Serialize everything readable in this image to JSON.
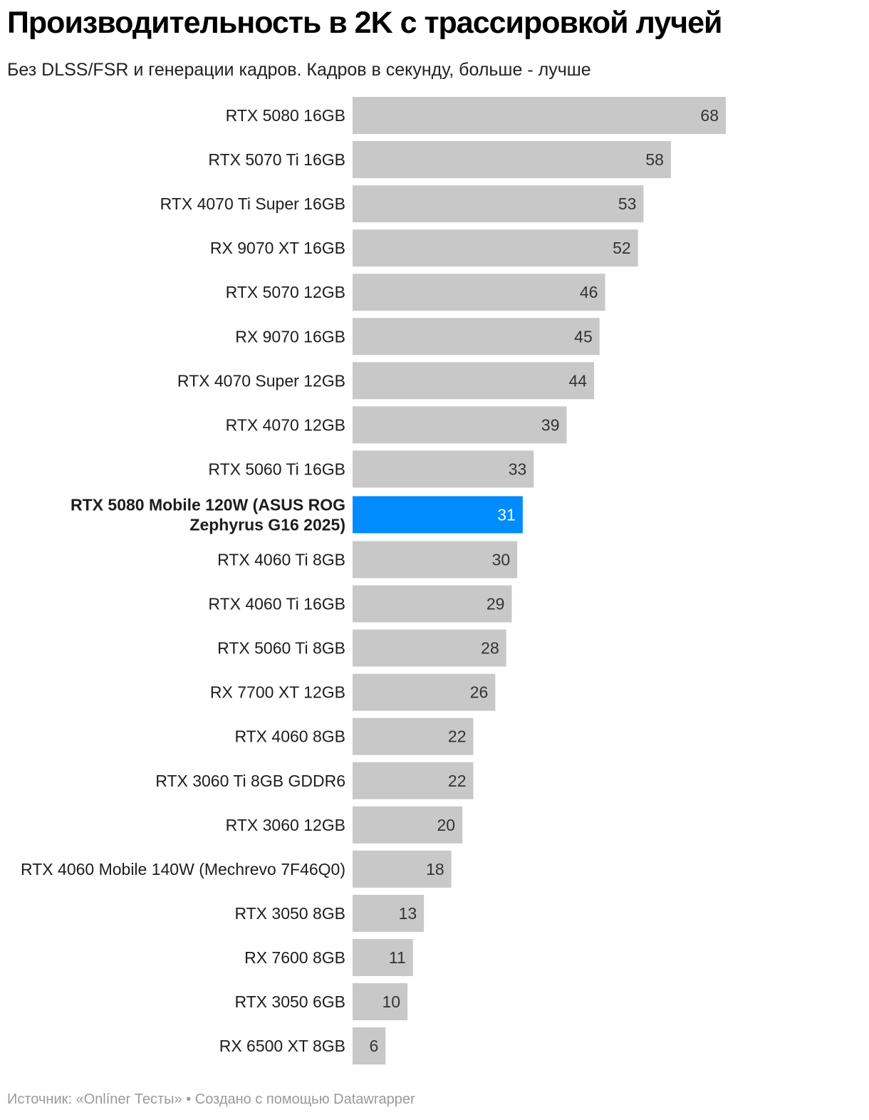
{
  "header": {
    "title": "Производительность в 2K с трассировкой лучей",
    "subtitle": "Без DLSS/FSR и генерации кадров. Кадров в секунду, больше - лучше"
  },
  "footer": {
    "text": "Источник: «Onlíner Тесты» • Создано с помощью Datawrapper"
  },
  "colors": {
    "bar": "#c8c8c8",
    "highlight": "#008cff",
    "label": "#1d1d1d",
    "value": "#333333",
    "highlight_value": "#ffffff"
  },
  "chart_data": {
    "type": "bar",
    "orientation": "horizontal",
    "xlim": [
      0,
      68
    ],
    "grid": false,
    "highlight_index": 9,
    "categories": [
      "RTX 5080 16GB",
      "RTX 5070 Ti 16GB",
      "RTX 4070 Ti Super 16GB",
      "RX 9070 XT 16GB",
      "RTX 5070 12GB",
      "RX 9070 16GB",
      "RTX 4070 Super 12GB",
      "RTX 4070 12GB",
      "RTX 5060 Ti 16GB",
      [
        "RTX 5080 Mobile 120W (ASUS ROG",
        "Zephyrus G16 2025)"
      ],
      "RTX 4060 Ti 8GB",
      "RTX 4060 Ti 16GB",
      "RTX 5060 Ti 8GB",
      "RX 7700 XT 12GB",
      "RTX 4060 8GB",
      "RTX 3060 Ti 8GB GDDR6",
      "RTX 3060 12GB",
      "RTX 4060 Mobile 140W (Mechrevo 7F46Q0)",
      "RTX 3050 8GB",
      "RX 7600 8GB",
      "RTX 3050 6GB",
      "RX 6500 XT 8GB"
    ],
    "values": [
      68,
      58,
      53,
      52,
      46,
      45,
      44,
      39,
      33,
      31,
      30,
      29,
      28,
      26,
      22,
      22,
      20,
      18,
      13,
      11,
      10,
      6
    ]
  }
}
